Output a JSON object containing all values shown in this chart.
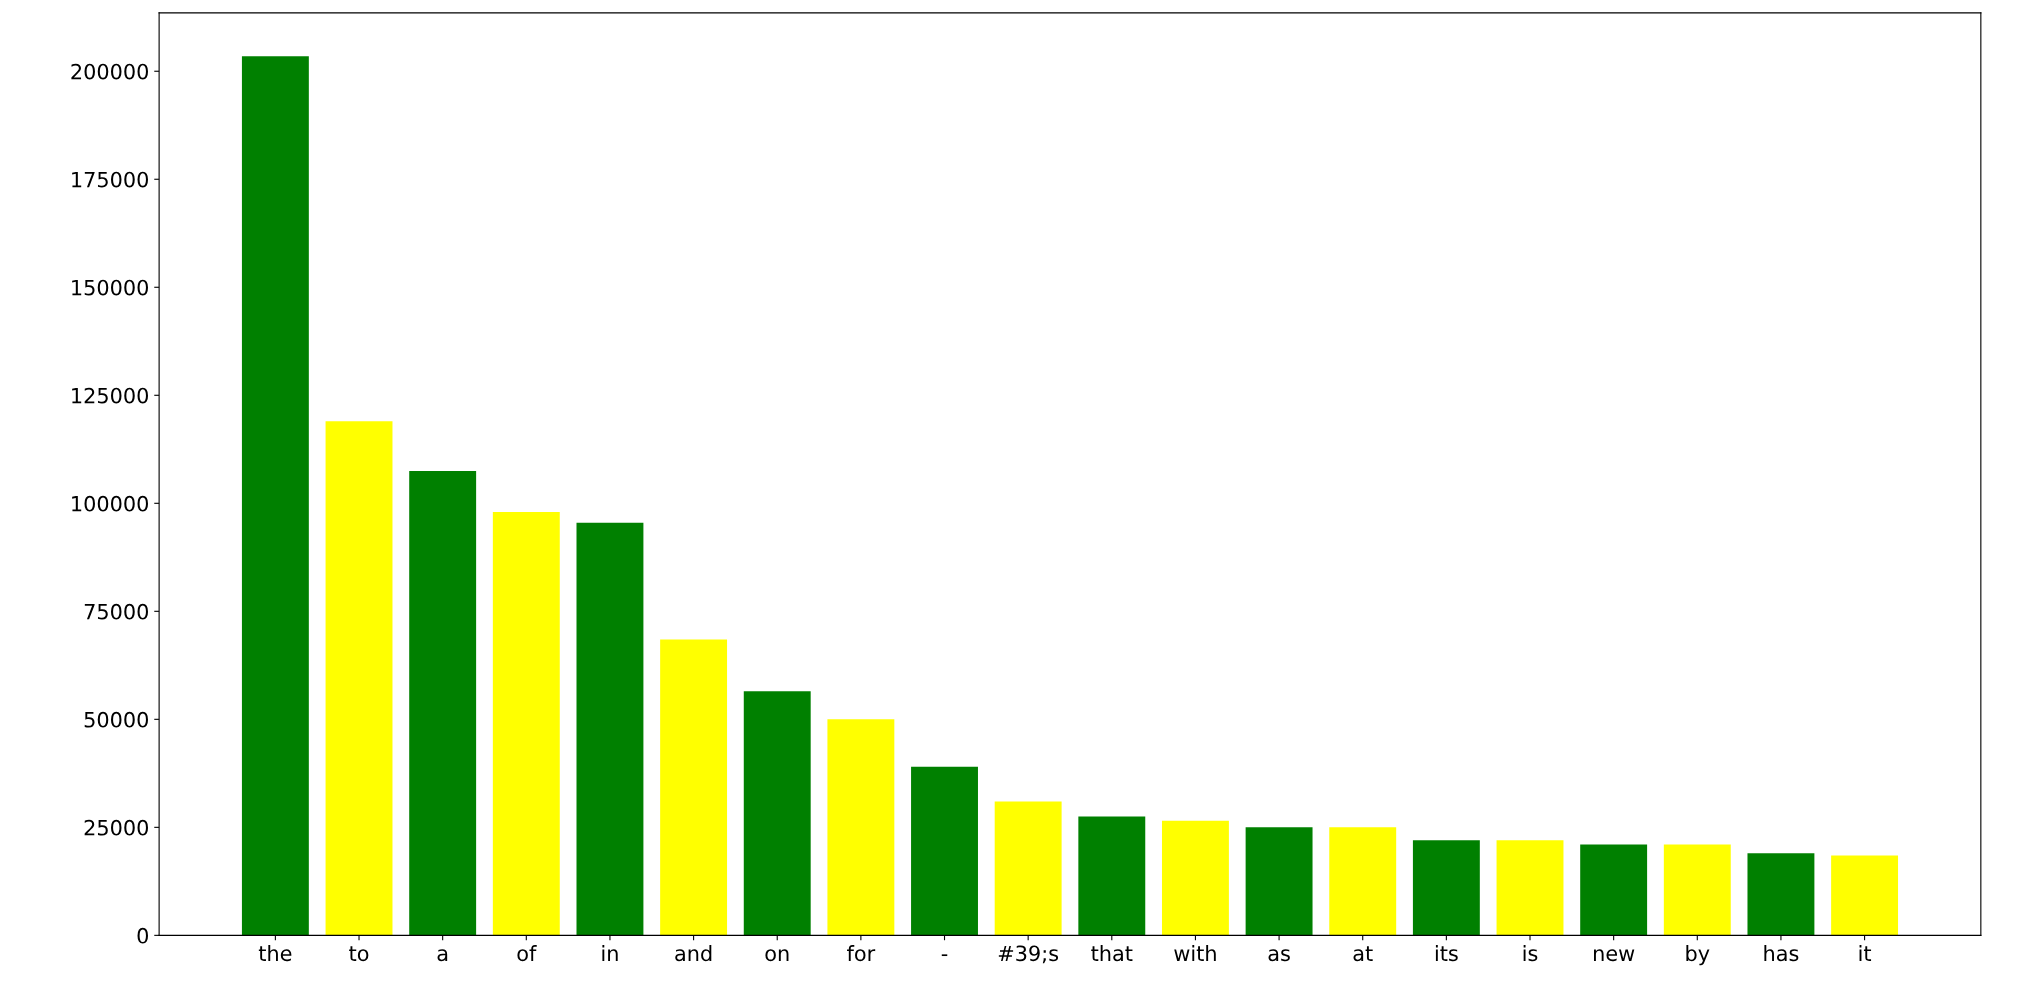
{
  "chart_data": {
    "type": "bar",
    "categories": [
      "the",
      "to",
      "a",
      "of",
      "in",
      "and",
      "on",
      "for",
      "-",
      "#39;s",
      "that",
      "with",
      "as",
      "at",
      "its",
      "is",
      "new",
      "by",
      "has",
      "it"
    ],
    "values": [
      203500,
      119000,
      107500,
      98000,
      95500,
      68500,
      56500,
      50000,
      39000,
      31000,
      27500,
      26500,
      25000,
      25000,
      22000,
      22000,
      21000,
      21000,
      19000,
      18500
    ],
    "colors": [
      "#008000",
      "#ffff00",
      "#008000",
      "#ffff00",
      "#008000",
      "#ffff00",
      "#008000",
      "#ffff00",
      "#008000",
      "#ffff00",
      "#008000",
      "#ffff00",
      "#008000",
      "#ffff00",
      "#008000",
      "#ffff00",
      "#008000",
      "#ffff00",
      "#008000",
      "#ffff00"
    ],
    "ylim": [
      0,
      213500
    ],
    "yticks": [
      0,
      25000,
      50000,
      75000,
      100000,
      125000,
      150000,
      175000,
      200000
    ],
    "grid": false
  }
}
